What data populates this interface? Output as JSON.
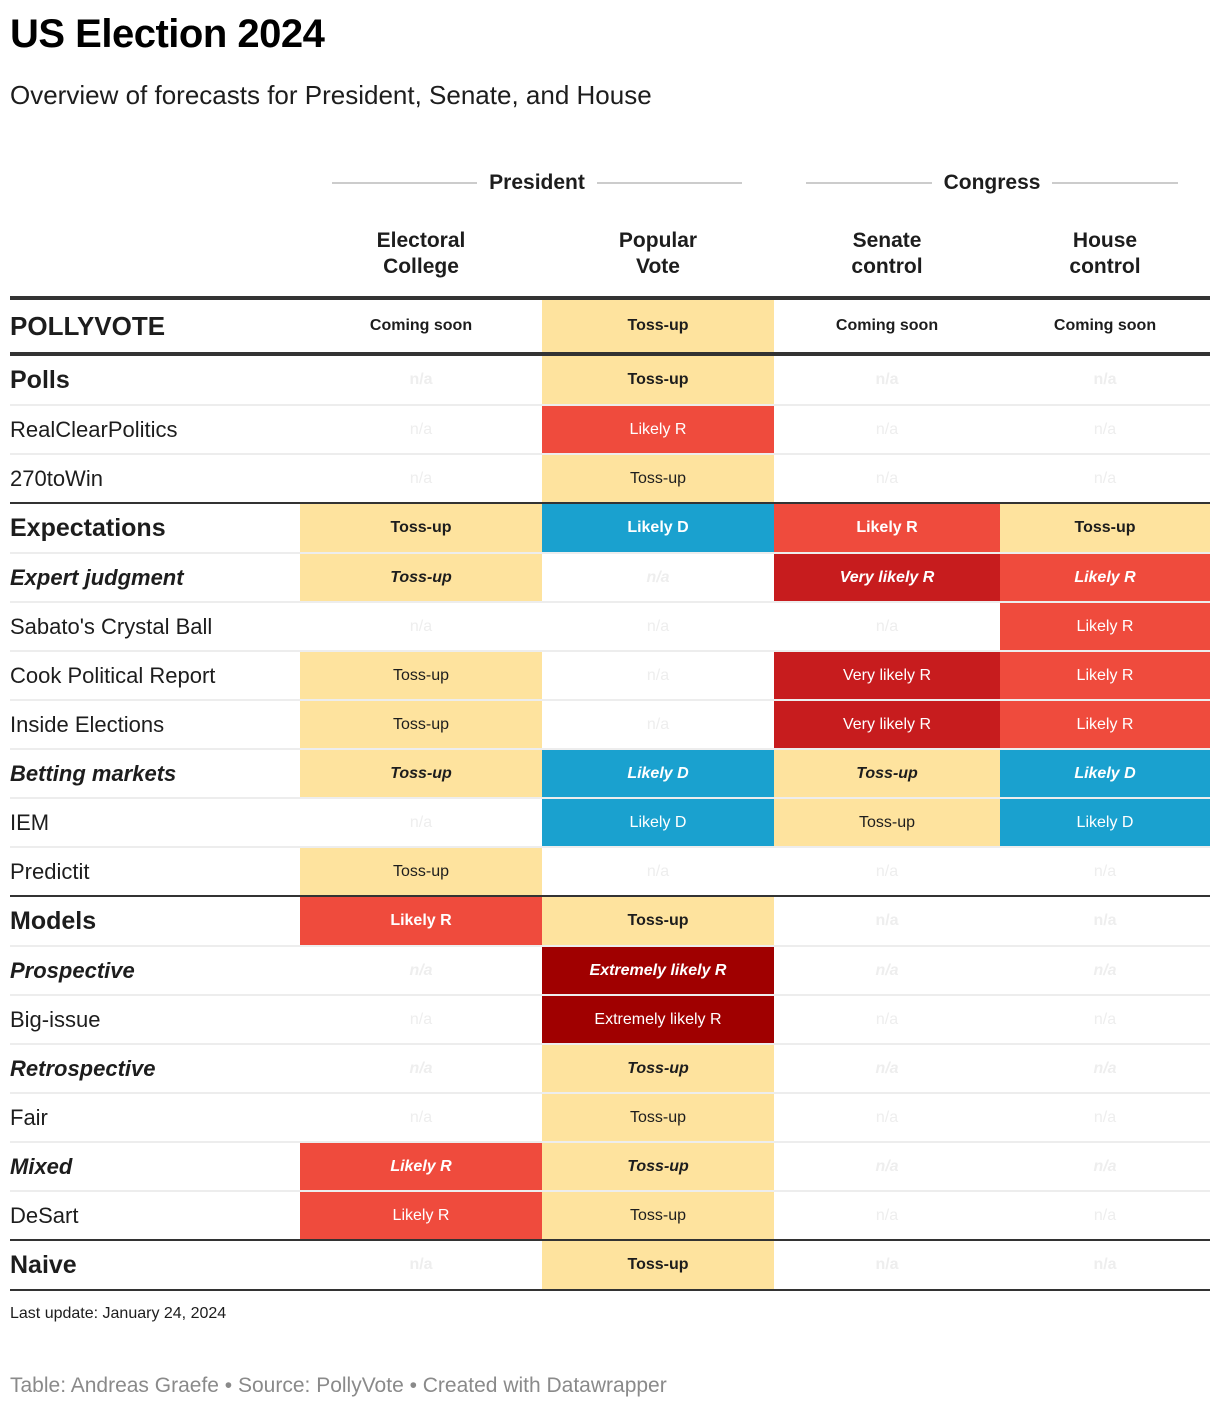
{
  "header": {
    "title": "US Election 2024",
    "subtitle": "Overview of forecasts for President, Senate, and House"
  },
  "groups": {
    "president": "President",
    "congress": "Congress"
  },
  "columns": {
    "electoral": "Electoral\nCollege",
    "popular": "Popular\nVote",
    "senate": "Senate\ncontrol",
    "house": "House\ncontrol"
  },
  "colors": {
    "tossup": "#fee39e",
    "likely_r": "#ef4b3d",
    "very_likely_r": "#c71c1e",
    "extremely_likely_r": "#a00000",
    "likely_d": "#1aa1cf",
    "na_text": "#eeeeee"
  },
  "rows": [
    {
      "label": "POLLYVOTE",
      "values": [
        "Coming soon",
        "Toss-up",
        "Coming soon",
        "Coming soon"
      ]
    },
    {
      "label": "Polls",
      "values": [
        "n/a",
        "Toss-up",
        "n/a",
        "n/a"
      ]
    },
    {
      "label": "RealClearPolitics",
      "values": [
        "n/a",
        "Likely R",
        "n/a",
        "n/a"
      ]
    },
    {
      "label": "270toWin",
      "values": [
        "n/a",
        "Toss-up",
        "n/a",
        "n/a"
      ]
    },
    {
      "label": "Expectations",
      "values": [
        "Toss-up",
        "Likely D",
        "Likely R",
        "Toss-up"
      ]
    },
    {
      "label": "Expert judgment",
      "values": [
        "Toss-up",
        "n/a",
        "Very likely R",
        "Likely R"
      ]
    },
    {
      "label": "Sabato's Crystal Ball",
      "values": [
        "n/a",
        "n/a",
        "n/a",
        "Likely R"
      ]
    },
    {
      "label": "Cook Political Report",
      "values": [
        "Toss-up",
        "n/a",
        "Very likely R",
        "Likely R"
      ]
    },
    {
      "label": "Inside Elections",
      "values": [
        "Toss-up",
        "n/a",
        "Very likely R",
        "Likely R"
      ]
    },
    {
      "label": "Betting markets",
      "values": [
        "Toss-up",
        "Likely D",
        "Toss-up",
        "Likely D"
      ]
    },
    {
      "label": "IEM",
      "values": [
        "n/a",
        "Likely D",
        "Toss-up",
        "Likely D"
      ]
    },
    {
      "label": "Predictit",
      "values": [
        "Toss-up",
        "n/a",
        "n/a",
        "n/a"
      ]
    },
    {
      "label": "Models",
      "values": [
        "Likely R",
        "Toss-up",
        "n/a",
        "n/a"
      ]
    },
    {
      "label": "Prospective",
      "values": [
        "n/a",
        "Extremely likely R",
        "n/a",
        "n/a"
      ]
    },
    {
      "label": "Big-issue",
      "values": [
        "n/a",
        "Extremely likely R",
        "n/a",
        "n/a"
      ]
    },
    {
      "label": "Retrospective",
      "values": [
        "n/a",
        "Toss-up",
        "n/a",
        "n/a"
      ]
    },
    {
      "label": "Fair",
      "values": [
        "n/a",
        "Toss-up",
        "n/a",
        "n/a"
      ]
    },
    {
      "label": "Mixed",
      "values": [
        "Likely R",
        "Toss-up",
        "n/a",
        "n/a"
      ]
    },
    {
      "label": "DeSart",
      "values": [
        "Likely R",
        "Toss-up",
        "n/a",
        "n/a"
      ]
    },
    {
      "label": "Naive",
      "values": [
        "n/a",
        "Toss-up",
        "n/a",
        "n/a"
      ]
    }
  ],
  "notes": "Last update: January 24, 2024",
  "footer": "Table: Andreas Graefe • Source: PollyVote • Created with Datawrapper",
  "chart_data": {
    "type": "table",
    "title": "US Election 2024",
    "subtitle": "Overview of forecasts for President, Senate, and House",
    "column_groups": [
      {
        "name": "President",
        "columns": [
          "Electoral College",
          "Popular Vote"
        ]
      },
      {
        "name": "Congress",
        "columns": [
          "Senate control",
          "House control"
        ]
      }
    ],
    "columns": [
      "",
      "Electoral College",
      "Popular Vote",
      "Senate control",
      "House control"
    ],
    "rows": [
      [
        "POLLYVOTE",
        "Coming soon",
        "Toss-up",
        "Coming soon",
        "Coming soon"
      ],
      [
        "Polls",
        "n/a",
        "Toss-up",
        "n/a",
        "n/a"
      ],
      [
        "RealClearPolitics",
        "n/a",
        "Likely R",
        "n/a",
        "n/a"
      ],
      [
        "270toWin",
        "n/a",
        "Toss-up",
        "n/a",
        "n/a"
      ],
      [
        "Expectations",
        "Toss-up",
        "Likely D",
        "Likely R",
        "Toss-up"
      ],
      [
        "Expert judgment",
        "Toss-up",
        "n/a",
        "Very likely R",
        "Likely R"
      ],
      [
        "Sabato's Crystal Ball",
        "n/a",
        "n/a",
        "n/a",
        "Likely R"
      ],
      [
        "Cook Political Report",
        "Toss-up",
        "n/a",
        "Very likely R",
        "Likely R"
      ],
      [
        "Inside Elections",
        "Toss-up",
        "n/a",
        "Very likely R",
        "Likely R"
      ],
      [
        "Betting markets",
        "Toss-up",
        "Likely D",
        "Toss-up",
        "Likely D"
      ],
      [
        "IEM",
        "n/a",
        "Likely D",
        "Toss-up",
        "Likely D"
      ],
      [
        "Predictit",
        "Toss-up",
        "n/a",
        "n/a",
        "n/a"
      ],
      [
        "Models",
        "Likely R",
        "Toss-up",
        "n/a",
        "n/a"
      ],
      [
        "Prospective",
        "n/a",
        "Extremely likely R",
        "n/a",
        "n/a"
      ],
      [
        "Big-issue",
        "n/a",
        "Extremely likely R",
        "n/a",
        "n/a"
      ],
      [
        "Retrospective",
        "n/a",
        "Toss-up",
        "n/a",
        "n/a"
      ],
      [
        "Fair",
        "n/a",
        "Toss-up",
        "n/a",
        "n/a"
      ],
      [
        "Mixed",
        "Likely R",
        "Toss-up",
        "n/a",
        "n/a"
      ],
      [
        "DeSart",
        "Likely R",
        "Toss-up",
        "n/a",
        "n/a"
      ],
      [
        "Naive",
        "n/a",
        "Toss-up",
        "n/a",
        "n/a"
      ]
    ],
    "notes": "Last update: January 24, 2024",
    "source": "Table: Andreas Graefe • Source: PollyVote • Created with Datawrapper"
  }
}
